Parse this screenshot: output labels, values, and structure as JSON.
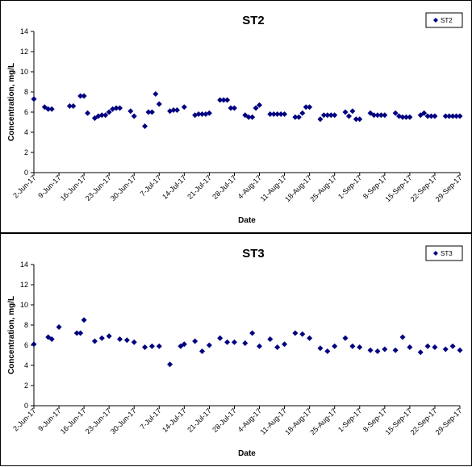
{
  "chart_data": [
    {
      "type": "scatter",
      "title": "ST2",
      "xlabel": "Date",
      "ylabel": "Concentration, mg/L",
      "ylim": [
        0,
        14
      ],
      "yticks": [
        "0",
        "2",
        "4",
        "6",
        "8",
        "10",
        "12",
        "14"
      ],
      "xlim": [
        "2017-06-02",
        "2017-09-29"
      ],
      "xticks": [
        "2-Jun-17",
        "9-Jun-17",
        "16-Jun-17",
        "23-Jun-17",
        "30-Jun-17",
        "7-Jul-17",
        "14-Jul-17",
        "21-Jul-17",
        "28-Jul-17",
        "4-Aug-17",
        "11-Aug-17",
        "18-Aug-17",
        "25-Aug-17",
        "1-Sep-17",
        "8-Sep-17",
        "15-Sep-17",
        "22-Sep-17",
        "29-Sep-17"
      ],
      "grid": false,
      "legend_position": "top-right",
      "marker": "diamond",
      "marker_color": "#000080",
      "series": [
        {
          "name": "ST2",
          "x": [
            "2017-06-02",
            "2017-06-05",
            "2017-06-06",
            "2017-06-07",
            "2017-06-12",
            "2017-06-13",
            "2017-06-15",
            "2017-06-16",
            "2017-06-17",
            "2017-06-19",
            "2017-06-20",
            "2017-06-21",
            "2017-06-22",
            "2017-06-23",
            "2017-06-24",
            "2017-06-25",
            "2017-06-26",
            "2017-06-29",
            "2017-06-30",
            "2017-07-03",
            "2017-07-04",
            "2017-07-05",
            "2017-07-06",
            "2017-07-07",
            "2017-07-10",
            "2017-07-11",
            "2017-07-12",
            "2017-07-14",
            "2017-07-17",
            "2017-07-18",
            "2017-07-19",
            "2017-07-20",
            "2017-07-21",
            "2017-07-24",
            "2017-07-25",
            "2017-07-26",
            "2017-07-27",
            "2017-07-28",
            "2017-07-31",
            "2017-08-01",
            "2017-08-02",
            "2017-08-03",
            "2017-08-04",
            "2017-08-07",
            "2017-08-08",
            "2017-08-09",
            "2017-08-10",
            "2017-08-11",
            "2017-08-14",
            "2017-08-15",
            "2017-08-16",
            "2017-08-17",
            "2017-08-18",
            "2017-08-21",
            "2017-08-22",
            "2017-08-23",
            "2017-08-24",
            "2017-08-25",
            "2017-08-28",
            "2017-08-29",
            "2017-08-30",
            "2017-08-31",
            "2017-09-01",
            "2017-09-04",
            "2017-09-05",
            "2017-09-06",
            "2017-09-07",
            "2017-09-08",
            "2017-09-11",
            "2017-09-12",
            "2017-09-13",
            "2017-09-14",
            "2017-09-15",
            "2017-09-18",
            "2017-09-19",
            "2017-09-20",
            "2017-09-21",
            "2017-09-22",
            "2017-09-25",
            "2017-09-26",
            "2017-09-27",
            "2017-09-28",
            "2017-09-29"
          ],
          "y": [
            7.3,
            6.5,
            6.3,
            6.3,
            6.6,
            6.6,
            7.6,
            7.6,
            5.9,
            5.4,
            5.6,
            5.7,
            5.7,
            6.0,
            6.3,
            6.4,
            6.4,
            6.1,
            5.6,
            4.6,
            6.0,
            6.0,
            7.8,
            6.8,
            6.1,
            6.2,
            6.2,
            6.5,
            5.7,
            5.8,
            5.8,
            5.8,
            5.9,
            7.2,
            7.2,
            7.2,
            6.4,
            6.4,
            5.7,
            5.5,
            5.5,
            6.4,
            6.7,
            5.8,
            5.8,
            5.8,
            5.8,
            5.8,
            5.5,
            5.5,
            5.9,
            6.5,
            6.5,
            5.3,
            5.7,
            5.7,
            5.7,
            5.7,
            6.0,
            5.6,
            6.1,
            5.3,
            5.3,
            5.9,
            5.7,
            5.7,
            5.7,
            5.7,
            5.9,
            5.6,
            5.5,
            5.5,
            5.5,
            5.7,
            5.9,
            5.6,
            5.6,
            5.6,
            5.6,
            5.6,
            5.6,
            5.6,
            5.6
          ]
        }
      ]
    },
    {
      "type": "scatter",
      "title": "ST3",
      "xlabel": "Date",
      "ylabel": "Concentration, mg/L",
      "ylim": [
        0,
        14
      ],
      "yticks": [
        "0",
        "2",
        "4",
        "6",
        "8",
        "10",
        "12",
        "14"
      ],
      "xlim": [
        "2017-06-02",
        "2017-09-29"
      ],
      "xticks": [
        "2-Jun-17",
        "9-Jun-17",
        "16-Jun-17",
        "23-Jun-17",
        "30-Jun-17",
        "7-Jul-17",
        "14-Jul-17",
        "21-Jul-17",
        "28-Jul-17",
        "4-Aug-17",
        "11-Aug-17",
        "18-Aug-17",
        "25-Aug-17",
        "1-Sep-17",
        "8-Sep-17",
        "15-Sep-17",
        "22-Sep-17",
        "29-Sep-17"
      ],
      "grid": false,
      "legend_position": "top-right",
      "marker": "diamond",
      "marker_color": "#000080",
      "series": [
        {
          "name": "ST3",
          "x": [
            "2017-06-02",
            "2017-06-06",
            "2017-06-07",
            "2017-06-09",
            "2017-06-14",
            "2017-06-15",
            "2017-06-16",
            "2017-06-19",
            "2017-06-21",
            "2017-06-23",
            "2017-06-26",
            "2017-06-28",
            "2017-06-30",
            "2017-07-03",
            "2017-07-05",
            "2017-07-07",
            "2017-07-10",
            "2017-07-13",
            "2017-07-14",
            "2017-07-17",
            "2017-07-19",
            "2017-07-21",
            "2017-07-24",
            "2017-07-26",
            "2017-07-28",
            "2017-07-31",
            "2017-08-02",
            "2017-08-04",
            "2017-08-07",
            "2017-08-09",
            "2017-08-11",
            "2017-08-14",
            "2017-08-16",
            "2017-08-18",
            "2017-08-21",
            "2017-08-23",
            "2017-08-25",
            "2017-08-28",
            "2017-08-30",
            "2017-09-01",
            "2017-09-04",
            "2017-09-06",
            "2017-09-08",
            "2017-09-11",
            "2017-09-13",
            "2017-09-15",
            "2017-09-18",
            "2017-09-20",
            "2017-09-22",
            "2017-09-25",
            "2017-09-27",
            "2017-09-29"
          ],
          "y": [
            6.1,
            6.8,
            6.6,
            7.8,
            7.2,
            7.2,
            8.5,
            6.4,
            6.7,
            6.9,
            6.6,
            6.5,
            6.3,
            5.8,
            5.9,
            5.9,
            4.1,
            5.9,
            6.1,
            6.4,
            5.4,
            6.0,
            6.7,
            6.3,
            6.3,
            6.2,
            7.2,
            5.9,
            6.6,
            5.8,
            6.1,
            7.2,
            7.1,
            6.7,
            5.7,
            5.4,
            5.9,
            6.7,
            5.9,
            5.8,
            5.5,
            5.4,
            5.6,
            5.5,
            6.8,
            5.8,
            5.3,
            5.9,
            5.8,
            5.6,
            5.9,
            5.5
          ]
        }
      ]
    }
  ]
}
